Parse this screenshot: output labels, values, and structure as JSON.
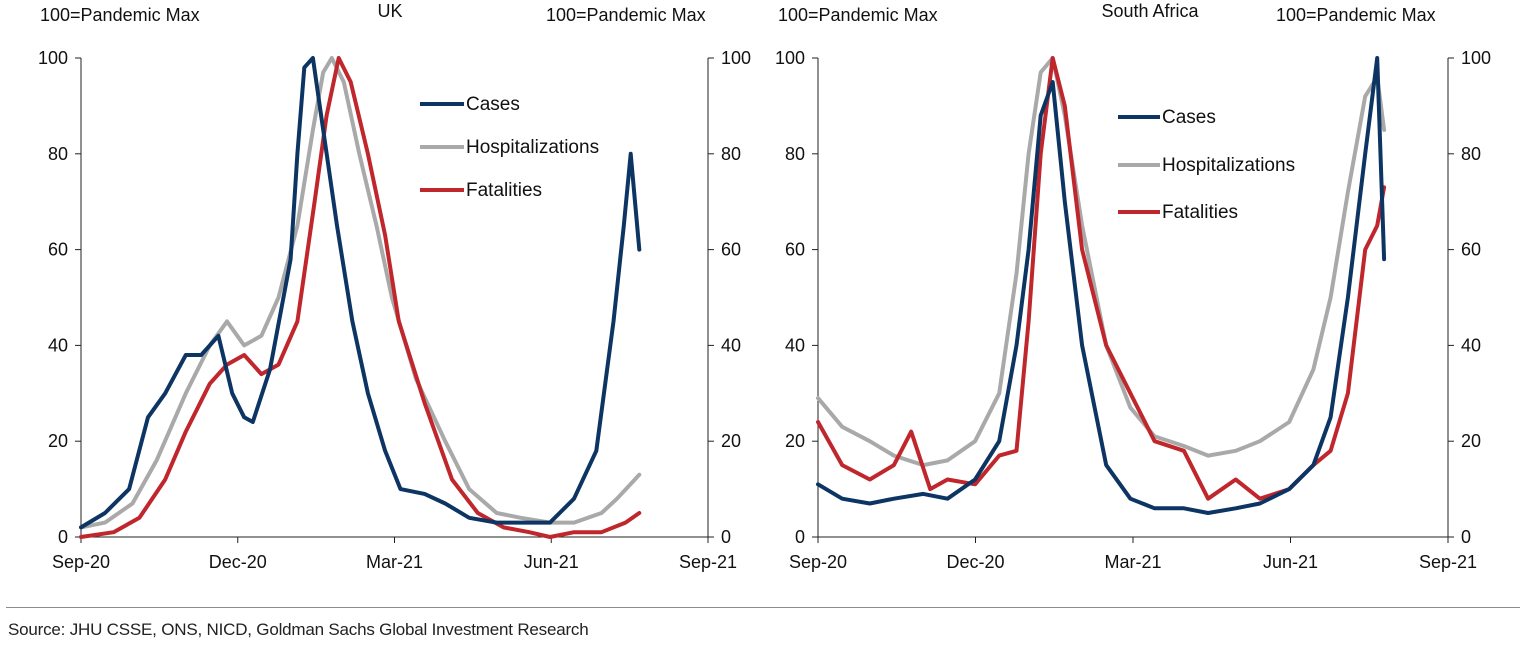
{
  "source_note": "Source: JHU CSSE, ONS, NICD, Goldman Sachs Global Investment Research",
  "colors": {
    "cases": "#0d3563",
    "hospitalizations": "#a9a9a9",
    "fatalities": "#c0272d",
    "axis": "#222222"
  },
  "chart_data": [
    {
      "type": "line",
      "title": "UK",
      "ylabel_left": "100=Pandemic Max",
      "ylabel_right": "100=Pandemic Max",
      "ylim": [
        0,
        100
      ],
      "yticks": [
        0,
        20,
        40,
        60,
        80,
        100
      ],
      "xlim": [
        "2020-09-01",
        "2021-09-01"
      ],
      "xticks": [
        "Sep-20",
        "Dec-20",
        "Mar-21",
        "Jun-21",
        "Sep-21"
      ],
      "grid": false,
      "legend_position": "top-right",
      "series": [
        {
          "name": "Cases",
          "key": "cases",
          "x": [
            "2020-09-01",
            "2020-09-15",
            "2020-09-29",
            "2020-10-10",
            "2020-10-20",
            "2020-11-01",
            "2020-11-10",
            "2020-11-20",
            "2020-11-28",
            "2020-12-05",
            "2020-12-10",
            "2020-12-20",
            "2021-01-01",
            "2021-01-05",
            "2021-01-09",
            "2021-01-14",
            "2021-01-20",
            "2021-01-28",
            "2021-02-06",
            "2021-02-15",
            "2021-02-25",
            "2021-03-06",
            "2021-03-20",
            "2021-04-01",
            "2021-04-15",
            "2021-05-01",
            "2021-05-15",
            "2021-06-01",
            "2021-06-15",
            "2021-06-28",
            "2021-07-08",
            "2021-07-14",
            "2021-07-18",
            "2021-07-23"
          ],
          "y": [
            2,
            5,
            10,
            25,
            30,
            38,
            38,
            42,
            30,
            25,
            24,
            35,
            58,
            80,
            98,
            100,
            85,
            65,
            45,
            30,
            18,
            10,
            9,
            7,
            4,
            3,
            3,
            3,
            8,
            18,
            45,
            65,
            80,
            60
          ]
        },
        {
          "name": "Hospitalizations",
          "key": "hospitalizations",
          "x": [
            "2020-09-01",
            "2020-09-15",
            "2020-10-01",
            "2020-10-15",
            "2020-11-01",
            "2020-11-15",
            "2020-11-25",
            "2020-12-05",
            "2020-12-15",
            "2020-12-25",
            "2021-01-05",
            "2021-01-14",
            "2021-01-20",
            "2021-01-25",
            "2021-02-01",
            "2021-02-10",
            "2021-02-20",
            "2021-03-01",
            "2021-03-15",
            "2021-04-01",
            "2021-04-15",
            "2021-05-01",
            "2021-05-15",
            "2021-06-01",
            "2021-06-15",
            "2021-07-01",
            "2021-07-10",
            "2021-07-23"
          ],
          "y": [
            2,
            3,
            7,
            16,
            30,
            40,
            45,
            40,
            42,
            50,
            65,
            85,
            97,
            100,
            95,
            80,
            65,
            50,
            33,
            20,
            10,
            5,
            4,
            3,
            3,
            5,
            8,
            13
          ]
        },
        {
          "name": "Fatalities",
          "key": "fatalities",
          "x": [
            "2020-09-01",
            "2020-09-20",
            "2020-10-05",
            "2020-10-20",
            "2020-11-01",
            "2020-11-15",
            "2020-11-25",
            "2020-12-05",
            "2020-12-15",
            "2020-12-25",
            "2021-01-05",
            "2021-01-15",
            "2021-01-22",
            "2021-01-29",
            "2021-02-05",
            "2021-02-15",
            "2021-02-25",
            "2021-03-05",
            "2021-03-20",
            "2021-04-05",
            "2021-04-20",
            "2021-05-05",
            "2021-05-20",
            "2021-06-01",
            "2021-06-15",
            "2021-07-01",
            "2021-07-15",
            "2021-07-23"
          ],
          "y": [
            0,
            1,
            4,
            12,
            22,
            32,
            36,
            38,
            34,
            36,
            45,
            70,
            88,
            100,
            95,
            80,
            63,
            45,
            28,
            12,
            5,
            2,
            1,
            0,
            1,
            1,
            3,
            5
          ]
        }
      ]
    },
    {
      "type": "line",
      "title": "South Africa",
      "ylabel_left": "100=Pandemic Max",
      "ylabel_right": "100=Pandemic Max",
      "ylim": [
        0,
        100
      ],
      "yticks": [
        0,
        20,
        40,
        60,
        80,
        100
      ],
      "xlim": [
        "2020-09-01",
        "2021-09-01"
      ],
      "xticks": [
        "Sep-20",
        "Dec-20",
        "Mar-21",
        "Jun-21",
        "Sep-21"
      ],
      "grid": false,
      "legend_position": "top-right",
      "series": [
        {
          "name": "Cases",
          "key": "cases",
          "x": [
            "2020-09-01",
            "2020-09-15",
            "2020-10-01",
            "2020-10-15",
            "2020-11-01",
            "2020-11-15",
            "2020-12-01",
            "2020-12-15",
            "2020-12-25",
            "2021-01-01",
            "2021-01-08",
            "2021-01-15",
            "2021-01-22",
            "2021-02-01",
            "2021-02-15",
            "2021-03-01",
            "2021-03-15",
            "2021-04-01",
            "2021-04-15",
            "2021-05-01",
            "2021-05-15",
            "2021-06-01",
            "2021-06-15",
            "2021-06-25",
            "2021-07-05",
            "2021-07-15",
            "2021-07-22",
            "2021-07-26"
          ],
          "y": [
            11,
            8,
            7,
            8,
            9,
            8,
            12,
            20,
            40,
            60,
            88,
            95,
            70,
            40,
            15,
            8,
            6,
            6,
            5,
            6,
            7,
            10,
            15,
            25,
            50,
            80,
            100,
            58
          ]
        },
        {
          "name": "Hospitalizations",
          "key": "hospitalizations",
          "x": [
            "2020-09-01",
            "2020-09-15",
            "2020-10-01",
            "2020-10-15",
            "2020-11-01",
            "2020-11-15",
            "2020-12-01",
            "2020-12-15",
            "2020-12-25",
            "2021-01-01",
            "2021-01-08",
            "2021-01-15",
            "2021-01-22",
            "2021-02-01",
            "2021-02-15",
            "2021-03-01",
            "2021-03-15",
            "2021-04-01",
            "2021-04-15",
            "2021-05-01",
            "2021-05-15",
            "2021-06-01",
            "2021-06-15",
            "2021-06-25",
            "2021-07-05",
            "2021-07-15",
            "2021-07-22",
            "2021-07-26"
          ],
          "y": [
            29,
            23,
            20,
            17,
            15,
            16,
            20,
            30,
            55,
            80,
            97,
            100,
            88,
            65,
            40,
            27,
            21,
            19,
            17,
            18,
            20,
            24,
            35,
            50,
            72,
            92,
            96,
            85
          ]
        },
        {
          "name": "Fatalities",
          "key": "fatalities",
          "x": [
            "2020-09-01",
            "2020-09-15",
            "2020-10-01",
            "2020-10-15",
            "2020-10-25",
            "2020-11-05",
            "2020-11-15",
            "2020-12-01",
            "2020-12-15",
            "2020-12-25",
            "2021-01-01",
            "2021-01-08",
            "2021-01-15",
            "2021-01-22",
            "2021-02-01",
            "2021-02-15",
            "2021-03-01",
            "2021-03-15",
            "2021-04-01",
            "2021-04-15",
            "2021-05-01",
            "2021-05-15",
            "2021-06-01",
            "2021-06-15",
            "2021-06-25",
            "2021-07-05",
            "2021-07-15",
            "2021-07-22",
            "2021-07-26"
          ],
          "y": [
            24,
            15,
            12,
            15,
            22,
            10,
            12,
            11,
            17,
            18,
            45,
            80,
            100,
            90,
            60,
            40,
            30,
            20,
            18,
            8,
            12,
            8,
            10,
            15,
            18,
            30,
            60,
            65,
            73
          ]
        }
      ]
    }
  ]
}
